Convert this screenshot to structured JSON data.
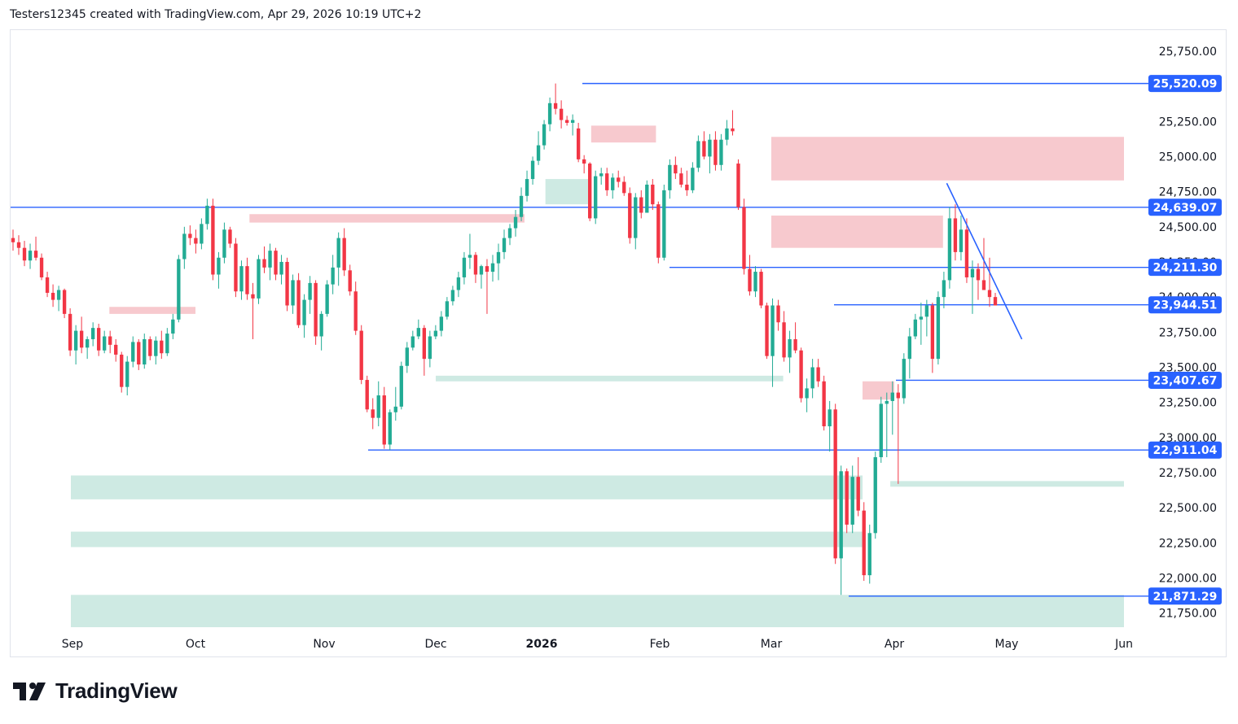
{
  "header": {
    "attribution": "Testers12345 created with TradingView.com, Apr 29, 2026 10:19 UTC+2"
  },
  "brand": {
    "name": "TradingView"
  },
  "colors": {
    "up": "#22ab94",
    "down": "#f23645",
    "line": "#2962ff",
    "supply": "#f7c6cb",
    "demand": "#c9e8e0"
  },
  "chart_data": {
    "type": "candlestick",
    "y_axis": {
      "ticks": [
        "25,750.00",
        "25,250.00",
        "25,000.00",
        "24,750.00",
        "24,500.00",
        "24,250.00",
        "24,000.00",
        "23,750.00",
        "23,500.00",
        "23,250.00",
        "23,000.00",
        "22,750.00",
        "22,500.00",
        "22,250.00",
        "22,000.00",
        "21,750.00"
      ],
      "ylim": [
        21650,
        25900
      ]
    },
    "x_axis": {
      "labels": [
        {
          "text": "Sep",
          "bold": false
        },
        {
          "text": "Oct",
          "bold": false
        },
        {
          "text": "Nov",
          "bold": false
        },
        {
          "text": "Dec",
          "bold": false
        },
        {
          "text": "2026",
          "bold": true
        },
        {
          "text": "Feb",
          "bold": false
        },
        {
          "text": "Mar",
          "bold": false
        },
        {
          "text": "Apr",
          "bold": false
        },
        {
          "text": "May",
          "bold": false
        },
        {
          "text": "Jun",
          "bold": false
        }
      ]
    },
    "horizontal_levels": [
      {
        "label": "25,520.09",
        "value": 25520.09
      },
      {
        "label": "24,639.07",
        "value": 24639.07
      },
      {
        "label": "24,211.30",
        "value": 24211.3
      },
      {
        "label": "23,944.51",
        "value": 23944.51
      },
      {
        "label": "23,407.67",
        "value": 23407.67
      },
      {
        "label": "22,911.04",
        "value": 22911.04
      },
      {
        "label": "21,871.29",
        "value": 21871.29
      }
    ],
    "trendline": {
      "from": {
        "x": "Apr 15",
        "y": 24810
      },
      "to": {
        "x": "May 5",
        "y": 23700
      }
    },
    "supply_zones": [
      {
        "x0": "Sep 10",
        "x1": "Oct 1",
        "y0": 23880,
        "y1": 23930
      },
      {
        "x0": "Oct 14",
        "x1": "Dec 27",
        "y0": 24530,
        "y1": 24590
      },
      {
        "x0": "Jan 14",
        "x1": "Jan 31",
        "y0": 25100,
        "y1": 25220
      },
      {
        "x0": "Mar 1",
        "x1": "Jun 1",
        "y0": 24830,
        "y1": 25140
      },
      {
        "x0": "Mar 1",
        "x1": "Apr 14",
        "y0": 24350,
        "y1": 24580
      },
      {
        "x0": "Mar 24",
        "x1": "Apr 1",
        "y0": 23270,
        "y1": 23400
      }
    ],
    "demand_zones": [
      {
        "x0": "Aug 20",
        "x1": "Mar 24",
        "y0": 22560,
        "y1": 22730
      },
      {
        "x0": "Aug 20",
        "x1": "Mar 24",
        "y0": 22220,
        "y1": 22330
      },
      {
        "x0": "Aug 20",
        "x1": "Jun 1",
        "y0": 21650,
        "y1": 21880
      },
      {
        "x0": "Dec 1",
        "x1": "Mar 4",
        "y0": 23400,
        "y1": 23440
      },
      {
        "x0": "Jan 2",
        "x1": "Jan 14",
        "y0": 24660,
        "y1": 24840
      },
      {
        "x0": "Mar 31",
        "x1": "Jun 1",
        "y0": 22650,
        "y1": 22690
      }
    ],
    "candles_ohlc": [
      [
        24420,
        24480,
        24330,
        24390
      ],
      [
        24390,
        24440,
        24300,
        24350
      ],
      [
        24350,
        24400,
        24220,
        24260
      ],
      [
        24260,
        24380,
        24200,
        24330
      ],
      [
        24330,
        24430,
        24260,
        24280
      ],
      [
        24280,
        24310,
        24120,
        24140
      ],
      [
        24140,
        24180,
        24000,
        24030
      ],
      [
        24030,
        24090,
        23930,
        23980
      ],
      [
        23980,
        24080,
        23900,
        24050
      ],
      [
        24050,
        24060,
        23850,
        23880
      ],
      [
        23880,
        23920,
        23580,
        23620
      ],
      [
        23620,
        23800,
        23520,
        23760
      ],
      [
        23760,
        23860,
        23600,
        23640
      ],
      [
        23640,
        23720,
        23560,
        23700
      ],
      [
        23700,
        23820,
        23650,
        23780
      ],
      [
        23780,
        23810,
        23580,
        23620
      ],
      [
        23620,
        23760,
        23600,
        23720
      ],
      [
        23720,
        23760,
        23600,
        23660
      ],
      [
        23660,
        23700,
        23540,
        23590
      ],
      [
        23590,
        23610,
        23320,
        23360
      ],
      [
        23360,
        23580,
        23300,
        23540
      ],
      [
        23540,
        23720,
        23500,
        23680
      ],
      [
        23680,
        23700,
        23480,
        23520
      ],
      [
        23520,
        23740,
        23490,
        23700
      ],
      [
        23700,
        23720,
        23550,
        23580
      ],
      [
        23580,
        23720,
        23520,
        23690
      ],
      [
        23690,
        23760,
        23560,
        23600
      ],
      [
        23600,
        23780,
        23580,
        23740
      ],
      [
        23740,
        23880,
        23700,
        23840
      ],
      [
        23840,
        24300,
        23820,
        24270
      ],
      [
        24270,
        24500,
        24200,
        24450
      ],
      [
        24450,
        24510,
        24370,
        24420
      ],
      [
        24420,
        24480,
        24310,
        24380
      ],
      [
        24380,
        24560,
        24340,
        24520
      ],
      [
        24520,
        24700,
        24480,
        24650
      ],
      [
        24650,
        24700,
        24120,
        24160
      ],
      [
        24160,
        24320,
        24060,
        24280
      ],
      [
        24280,
        24530,
        24240,
        24480
      ],
      [
        24480,
        24500,
        24350,
        24380
      ],
      [
        24380,
        24420,
        24000,
        24040
      ],
      [
        24040,
        24260,
        23980,
        24220
      ],
      [
        24220,
        24280,
        23980,
        24020
      ],
      [
        24020,
        24100,
        23700,
        23990
      ],
      [
        23990,
        24300,
        23950,
        24270
      ],
      [
        24270,
        24360,
        24170,
        24210
      ],
      [
        24210,
        24380,
        24120,
        24330
      ],
      [
        24330,
        24350,
        24120,
        24160
      ],
      [
        24160,
        24300,
        24090,
        24250
      ],
      [
        24250,
        24280,
        23900,
        23940
      ],
      [
        23940,
        24160,
        23880,
        24120
      ],
      [
        24120,
        24170,
        23780,
        23800
      ],
      [
        23800,
        24020,
        23710,
        23980
      ],
      [
        23980,
        24150,
        23880,
        24100
      ],
      [
        24100,
        24120,
        23660,
        23720
      ],
      [
        23720,
        23900,
        23620,
        23880
      ],
      [
        23880,
        24120,
        23860,
        24090
      ],
      [
        24090,
        24300,
        24020,
        24210
      ],
      [
        24210,
        24460,
        24080,
        24420
      ],
      [
        24420,
        24490,
        24150,
        24190
      ],
      [
        24190,
        24230,
        24010,
        24040
      ],
      [
        24040,
        24110,
        23730,
        23760
      ],
      [
        23760,
        23800,
        23380,
        23410
      ],
      [
        23410,
        23440,
        23180,
        23200
      ],
      [
        23200,
        23280,
        23060,
        23140
      ],
      [
        23140,
        23400,
        23080,
        23300
      ],
      [
        23300,
        23360,
        22920,
        22950
      ],
      [
        22950,
        23200,
        22910,
        23180
      ],
      [
        23180,
        23360,
        23120,
        23220
      ],
      [
        23220,
        23540,
        23200,
        23510
      ],
      [
        23510,
        23680,
        23460,
        23640
      ],
      [
        23640,
        23760,
        23620,
        23720
      ],
      [
        23720,
        23840,
        23700,
        23780
      ],
      [
        23780,
        23800,
        23440,
        23560
      ],
      [
        23560,
        23760,
        23500,
        23720
      ],
      [
        23720,
        23800,
        23700,
        23760
      ],
      [
        23760,
        23900,
        23720,
        23860
      ],
      [
        23860,
        24000,
        23840,
        23970
      ],
      [
        23970,
        24080,
        23940,
        24050
      ],
      [
        24050,
        24180,
        24000,
        24140
      ],
      [
        24140,
        24320,
        24090,
        24280
      ],
      [
        24280,
        24450,
        24200,
        24300
      ],
      [
        24300,
        24320,
        24100,
        24160
      ],
      [
        24160,
        24230,
        24060,
        24220
      ],
      [
        24220,
        24270,
        23880,
        24180
      ],
      [
        24180,
        24300,
        24110,
        24240
      ],
      [
        24240,
        24380,
        24120,
        24320
      ],
      [
        24320,
        24480,
        24270,
        24420
      ],
      [
        24420,
        24520,
        24370,
        24490
      ],
      [
        24490,
        24620,
        24430,
        24570
      ],
      [
        24570,
        24780,
        24540,
        24720
      ],
      [
        24720,
        24900,
        24680,
        24840
      ],
      [
        24840,
        25000,
        24800,
        24970
      ],
      [
        24970,
        25180,
        24940,
        25080
      ],
      [
        25080,
        25260,
        25050,
        25230
      ],
      [
        25230,
        25420,
        25180,
        25380
      ],
      [
        25380,
        25520,
        25300,
        25340
      ],
      [
        25340,
        25400,
        25200,
        25260
      ],
      [
        25260,
        25290,
        25220,
        25240
      ],
      [
        25240,
        25300,
        25150,
        25260
      ],
      [
        25200,
        25240,
        24960,
        24980
      ],
      [
        24980,
        25010,
        24880,
        24950
      ],
      [
        24950,
        24960,
        24540,
        24560
      ],
      [
        24560,
        24900,
        24520,
        24860
      ],
      [
        24860,
        24920,
        24800,
        24880
      ],
      [
        24880,
        24920,
        24720,
        24760
      ],
      [
        24760,
        24880,
        24700,
        24850
      ],
      [
        24850,
        24900,
        24780,
        24820
      ],
      [
        24820,
        24860,
        24720,
        24740
      ],
      [
        24740,
        24780,
        24380,
        24420
      ],
      [
        24420,
        24740,
        24340,
        24710
      ],
      [
        24710,
        24760,
        24560,
        24600
      ],
      [
        24600,
        24830,
        24600,
        24800
      ],
      [
        24800,
        24840,
        24620,
        24660
      ],
      [
        24660,
        24680,
        24240,
        24280
      ],
      [
        24280,
        24800,
        24260,
        24760
      ],
      [
        24760,
        24980,
        24700,
        24940
      ],
      [
        24940,
        25000,
        24840,
        24880
      ],
      [
        24880,
        24920,
        24780,
        24800
      ],
      [
        24800,
        24900,
        24720,
        24760
      ],
      [
        24760,
        24960,
        24740,
        24920
      ],
      [
        24920,
        25150,
        24890,
        25110
      ],
      [
        25110,
        25180,
        24980,
        25000
      ],
      [
        25000,
        25160,
        24880,
        25120
      ],
      [
        25120,
        25180,
        24900,
        24940
      ],
      [
        24940,
        25160,
        24900,
        25120
      ],
      [
        25120,
        25260,
        25080,
        25200
      ],
      [
        25200,
        25330,
        25150,
        25180
      ],
      [
        24950,
        24980,
        24620,
        24640
      ],
      [
        24640,
        24700,
        24160,
        24200
      ],
      [
        24200,
        24300,
        24010,
        24040
      ],
      [
        24040,
        24220,
        24000,
        24180
      ],
      [
        24180,
        24200,
        23920,
        23940
      ],
      [
        23940,
        23960,
        23560,
        23580
      ],
      [
        23580,
        23990,
        23360,
        23940
      ],
      [
        23940,
        23980,
        23760,
        23820
      ],
      [
        23820,
        23900,
        23540,
        23570
      ],
      [
        23570,
        23760,
        23460,
        23700
      ],
      [
        23700,
        23820,
        23600,
        23620
      ],
      [
        23620,
        23640,
        23250,
        23280
      ],
      [
        23280,
        23420,
        23180,
        23350
      ],
      [
        23350,
        23560,
        23280,
        23500
      ],
      [
        23500,
        23560,
        23360,
        23400
      ],
      [
        23400,
        23440,
        23050,
        23080
      ],
      [
        23080,
        23260,
        22900,
        23200
      ],
      [
        23200,
        23240,
        22100,
        22140
      ],
      [
        22140,
        22800,
        21880,
        22760
      ],
      [
        22760,
        22780,
        22320,
        22380
      ],
      [
        22380,
        22800,
        22320,
        22720
      ],
      [
        22720,
        22860,
        22440,
        22480
      ],
      [
        22480,
        22540,
        21980,
        22020
      ],
      [
        22020,
        22380,
        21960,
        22320
      ],
      [
        22320,
        22900,
        22280,
        22860
      ],
      [
        22860,
        23290,
        22820,
        23240
      ],
      [
        23240,
        23320,
        22860,
        23260
      ],
      [
        23260,
        23400,
        23020,
        23320
      ],
      [
        23320,
        23380,
        22670,
        23280
      ],
      [
        23280,
        23600,
        23240,
        23560
      ],
      [
        23560,
        23780,
        23420,
        23720
      ],
      [
        23720,
        23880,
        23700,
        23840
      ],
      [
        23840,
        23960,
        23660,
        23860
      ],
      [
        23860,
        23980,
        23720,
        23940
      ],
      [
        23940,
        23960,
        23460,
        23560
      ],
      [
        23560,
        24040,
        23520,
        24000
      ],
      [
        24000,
        24180,
        23920,
        24120
      ],
      [
        24120,
        24640,
        24060,
        24560
      ],
      [
        24560,
        24660,
        24260,
        24320
      ],
      [
        24320,
        24580,
        24260,
        24480
      ],
      [
        24480,
        24560,
        24100,
        24140
      ],
      [
        24140,
        24260,
        23880,
        24200
      ],
      [
        24200,
        24240,
        23980,
        24120
      ],
      [
        24120,
        24420,
        24060,
        24050
      ],
      [
        24050,
        24280,
        23930,
        24000
      ],
      [
        24000,
        24030,
        23950,
        23940
      ]
    ]
  }
}
